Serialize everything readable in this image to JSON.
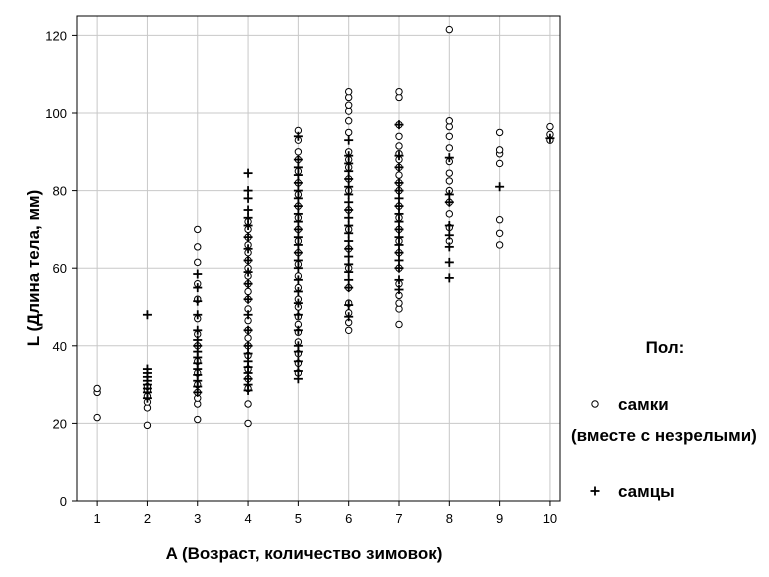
{
  "chart_data": {
    "type": "scatter",
    "xlabel": "A (Возраст, количество зимовок)",
    "ylabel": "L (Длина тела, мм)",
    "xlim": [
      0.6,
      10.2
    ],
    "ylim": [
      0,
      125
    ],
    "x_ticks": [
      1,
      2,
      3,
      4,
      5,
      6,
      7,
      8,
      9,
      10
    ],
    "y_ticks": [
      0,
      20,
      40,
      60,
      80,
      100,
      120
    ],
    "grid": true,
    "legend": {
      "title": "Пол:",
      "position": "right",
      "entries": [
        {
          "marker": "circle",
          "lines": [
            "самки",
            "(вместе с незрелыми)"
          ]
        },
        {
          "marker": "plus",
          "lines": [
            "самцы"
          ]
        }
      ]
    },
    "series": [
      {
        "name": "самки (вместе с незрелыми)",
        "marker": "circle",
        "points": [
          [
            1,
            21.5
          ],
          [
            1,
            28
          ],
          [
            1,
            29
          ],
          [
            2,
            19.5
          ],
          [
            2,
            24
          ],
          [
            2,
            25.5
          ],
          [
            2,
            27
          ],
          [
            2,
            28.5
          ],
          [
            2,
            29.5
          ],
          [
            3,
            21
          ],
          [
            3,
            25
          ],
          [
            3,
            26.5
          ],
          [
            3,
            28
          ],
          [
            3,
            30
          ],
          [
            3,
            33
          ],
          [
            3,
            36
          ],
          [
            3,
            40
          ],
          [
            3,
            43
          ],
          [
            3,
            47
          ],
          [
            3,
            52
          ],
          [
            3,
            56
          ],
          [
            3,
            61.5
          ],
          [
            3,
            65.5
          ],
          [
            3,
            70
          ],
          [
            4,
            20
          ],
          [
            4,
            25
          ],
          [
            4,
            29
          ],
          [
            4,
            31.5
          ],
          [
            4,
            34
          ],
          [
            4,
            37.5
          ],
          [
            4,
            40
          ],
          [
            4,
            42
          ],
          [
            4,
            44
          ],
          [
            4,
            46.5
          ],
          [
            4,
            49.5
          ],
          [
            4,
            52
          ],
          [
            4,
            54
          ],
          [
            4,
            56
          ],
          [
            4,
            58
          ],
          [
            4,
            60
          ],
          [
            4,
            62
          ],
          [
            4,
            64
          ],
          [
            4,
            66
          ],
          [
            4,
            68
          ],
          [
            4,
            70
          ],
          [
            4,
            72
          ],
          [
            5,
            33
          ],
          [
            5,
            35.5
          ],
          [
            5,
            38
          ],
          [
            5,
            41
          ],
          [
            5,
            43.5
          ],
          [
            5,
            45.5
          ],
          [
            5,
            47.5
          ],
          [
            5,
            50
          ],
          [
            5,
            52
          ],
          [
            5,
            55
          ],
          [
            5,
            58
          ],
          [
            5,
            61
          ],
          [
            5,
            64
          ],
          [
            5,
            67
          ],
          [
            5,
            70
          ],
          [
            5,
            73
          ],
          [
            5,
            76
          ],
          [
            5,
            79
          ],
          [
            5,
            82
          ],
          [
            5,
            85
          ],
          [
            5,
            88
          ],
          [
            5,
            90
          ],
          [
            5,
            93
          ],
          [
            5,
            95.5
          ],
          [
            6,
            44
          ],
          [
            6,
            46
          ],
          [
            6,
            48.5
          ],
          [
            6,
            51
          ],
          [
            6,
            55
          ],
          [
            6,
            60
          ],
          [
            6,
            65
          ],
          [
            6,
            70
          ],
          [
            6,
            75
          ],
          [
            6,
            80
          ],
          [
            6,
            83
          ],
          [
            6,
            86
          ],
          [
            6,
            88
          ],
          [
            6,
            90
          ],
          [
            6,
            95
          ],
          [
            6,
            98
          ],
          [
            6,
            100.5
          ],
          [
            6,
            102
          ],
          [
            6,
            104
          ],
          [
            6,
            105.5
          ],
          [
            7,
            45.5
          ],
          [
            7,
            49.5
          ],
          [
            7,
            51
          ],
          [
            7,
            53
          ],
          [
            7,
            56
          ],
          [
            7,
            60
          ],
          [
            7,
            64
          ],
          [
            7,
            67
          ],
          [
            7,
            70
          ],
          [
            7,
            73
          ],
          [
            7,
            76
          ],
          [
            7,
            80
          ],
          [
            7,
            82
          ],
          [
            7,
            84
          ],
          [
            7,
            86
          ],
          [
            7,
            88
          ],
          [
            7,
            89.5
          ],
          [
            7,
            91.5
          ],
          [
            7,
            94
          ],
          [
            7,
            97
          ],
          [
            7,
            104
          ],
          [
            7,
            105.5
          ],
          [
            8,
            67
          ],
          [
            8,
            70.5
          ],
          [
            8,
            74
          ],
          [
            8,
            77
          ],
          [
            8,
            80
          ],
          [
            8,
            82.5
          ],
          [
            8,
            84.5
          ],
          [
            8,
            87.5
          ],
          [
            8,
            91
          ],
          [
            8,
            94
          ],
          [
            8,
            96.5
          ],
          [
            8,
            98
          ],
          [
            8,
            121.5
          ],
          [
            9,
            66
          ],
          [
            9,
            69
          ],
          [
            9,
            72.5
          ],
          [
            9,
            87
          ],
          [
            9,
            89.5
          ],
          [
            9,
            90.5
          ],
          [
            9,
            95
          ],
          [
            10,
            93
          ],
          [
            10,
            94.5
          ],
          [
            10,
            96.5
          ]
        ]
      },
      {
        "name": "самцы",
        "marker": "plus",
        "points": [
          [
            2,
            26.5
          ],
          [
            2,
            28
          ],
          [
            2,
            29
          ],
          [
            2,
            30
          ],
          [
            2,
            31
          ],
          [
            2,
            32
          ],
          [
            2,
            33
          ],
          [
            2,
            34
          ],
          [
            2,
            48
          ],
          [
            3,
            28
          ],
          [
            3,
            29.5
          ],
          [
            3,
            31
          ],
          [
            3,
            32.5
          ],
          [
            3,
            34
          ],
          [
            3,
            35.5
          ],
          [
            3,
            37
          ],
          [
            3,
            38.5
          ],
          [
            3,
            40
          ],
          [
            3,
            41.5
          ],
          [
            3,
            44
          ],
          [
            3,
            48
          ],
          [
            3,
            51.5
          ],
          [
            3,
            55
          ],
          [
            3,
            58.5
          ],
          [
            4,
            28.5
          ],
          [
            4,
            30
          ],
          [
            4,
            31.5
          ],
          [
            4,
            33
          ],
          [
            4,
            34.5
          ],
          [
            4,
            36
          ],
          [
            4,
            38
          ],
          [
            4,
            40
          ],
          [
            4,
            44
          ],
          [
            4,
            48
          ],
          [
            4,
            52
          ],
          [
            4,
            56
          ],
          [
            4,
            59
          ],
          [
            4,
            62
          ],
          [
            4,
            65
          ],
          [
            4,
            68
          ],
          [
            4,
            71
          ],
          [
            4,
            73
          ],
          [
            4,
            75
          ],
          [
            4,
            78
          ],
          [
            4,
            80
          ],
          [
            4,
            84.5
          ],
          [
            5,
            31.5
          ],
          [
            5,
            33.5
          ],
          [
            5,
            36
          ],
          [
            5,
            38.5
          ],
          [
            5,
            40
          ],
          [
            5,
            44
          ],
          [
            5,
            48
          ],
          [
            5,
            51
          ],
          [
            5,
            54
          ],
          [
            5,
            57
          ],
          [
            5,
            60
          ],
          [
            5,
            62
          ],
          [
            5,
            64
          ],
          [
            5,
            66
          ],
          [
            5,
            68
          ],
          [
            5,
            70
          ],
          [
            5,
            72
          ],
          [
            5,
            74
          ],
          [
            5,
            76
          ],
          [
            5,
            78
          ],
          [
            5,
            80
          ],
          [
            5,
            82
          ],
          [
            5,
            84
          ],
          [
            5,
            86
          ],
          [
            5,
            88
          ],
          [
            5,
            94
          ],
          [
            6,
            47.5
          ],
          [
            6,
            50.5
          ],
          [
            6,
            55
          ],
          [
            6,
            57
          ],
          [
            6,
            59
          ],
          [
            6,
            61
          ],
          [
            6,
            63
          ],
          [
            6,
            65
          ],
          [
            6,
            67
          ],
          [
            6,
            69
          ],
          [
            6,
            71
          ],
          [
            6,
            73
          ],
          [
            6,
            75
          ],
          [
            6,
            77
          ],
          [
            6,
            79
          ],
          [
            6,
            81
          ],
          [
            6,
            83
          ],
          [
            6,
            85
          ],
          [
            6,
            87
          ],
          [
            6,
            89
          ],
          [
            6,
            93
          ],
          [
            7,
            54.5
          ],
          [
            7,
            57
          ],
          [
            7,
            60
          ],
          [
            7,
            62
          ],
          [
            7,
            64
          ],
          [
            7,
            66
          ],
          [
            7,
            68
          ],
          [
            7,
            70
          ],
          [
            7,
            72
          ],
          [
            7,
            74
          ],
          [
            7,
            76
          ],
          [
            7,
            78
          ],
          [
            7,
            80
          ],
          [
            7,
            82
          ],
          [
            7,
            86
          ],
          [
            7,
            89
          ],
          [
            7,
            97
          ],
          [
            8,
            57.5
          ],
          [
            8,
            61.5
          ],
          [
            8,
            65.5
          ],
          [
            8,
            68.5
          ],
          [
            8,
            71
          ],
          [
            8,
            77
          ],
          [
            8,
            79
          ],
          [
            8,
            88.5
          ],
          [
            9,
            81
          ],
          [
            10,
            93.5
          ]
        ]
      }
    ]
  }
}
